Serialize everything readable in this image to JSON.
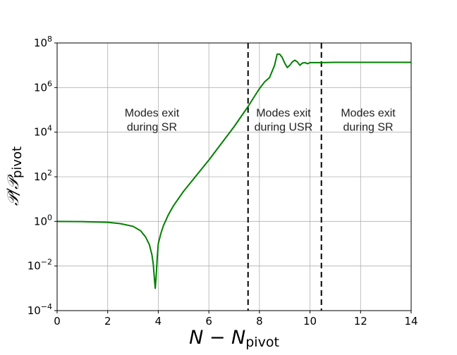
{
  "chart_data": {
    "type": "line",
    "xlabel": "N − N",
    "xlabel_sub": "pivot",
    "ylabel": "𝒫/𝒫",
    "ylabel_sub": "pivot",
    "xlim": [
      0,
      14
    ],
    "ylim_log10": [
      -4,
      8
    ],
    "y_scale": "log",
    "grid": true,
    "x_ticks": [
      0,
      2,
      4,
      6,
      8,
      10,
      12,
      14
    ],
    "x_tick_labels": [
      "0",
      "2",
      "4",
      "6",
      "8",
      "10",
      "12",
      "14"
    ],
    "y_ticks_log10": [
      -4,
      -2,
      0,
      2,
      4,
      6,
      8
    ],
    "y_tick_base": "10",
    "y_tick_exponents": [
      "−4",
      "−2",
      "0",
      "2",
      "4",
      "6",
      "8"
    ],
    "vlines": [
      7.55,
      10.45
    ],
    "series": [
      {
        "color": "#008000",
        "x": [
          0,
          1,
          2,
          2.5,
          3,
          3.3,
          3.5,
          3.65,
          3.75,
          3.8,
          3.85,
          3.88,
          3.92,
          3.96,
          4.0,
          4.1,
          4.2,
          4.4,
          4.6,
          5.0,
          5.5,
          6.0,
          6.5,
          7.0,
          7.55,
          7.8,
          8.0,
          8.2,
          8.4,
          8.6,
          8.7,
          8.8,
          8.9,
          9.0,
          9.1,
          9.2,
          9.3,
          9.4,
          9.5,
          9.6,
          9.7,
          9.8,
          9.9,
          10.0,
          10.2,
          10.45,
          11,
          12,
          13,
          14
        ],
        "log10y": [
          0,
          -0.01,
          -0.04,
          -0.1,
          -0.22,
          -0.42,
          -0.7,
          -1.05,
          -1.5,
          -1.9,
          -2.6,
          -3.0,
          -2.4,
          -1.6,
          -1.0,
          -0.55,
          -0.2,
          0.3,
          0.7,
          1.35,
          2.05,
          2.75,
          3.5,
          4.25,
          5.15,
          5.6,
          5.95,
          6.25,
          6.45,
          7.0,
          7.5,
          7.5,
          7.35,
          7.1,
          6.9,
          7.0,
          7.15,
          7.23,
          7.15,
          7.0,
          7.1,
          7.12,
          7.07,
          7.12,
          7.12,
          7.12,
          7.13,
          7.13,
          7.13,
          7.13
        ]
      }
    ],
    "annotations": [
      {
        "x": 3.75,
        "log10y": 4.7,
        "lines": [
          "Modes exit",
          "during SR"
        ]
      },
      {
        "x": 8.95,
        "log10y": 4.7,
        "lines": [
          "Modes exit",
          "during USR"
        ]
      },
      {
        "x": 12.3,
        "log10y": 4.7,
        "lines": [
          "Modes exit",
          "during SR"
        ]
      }
    ]
  }
}
